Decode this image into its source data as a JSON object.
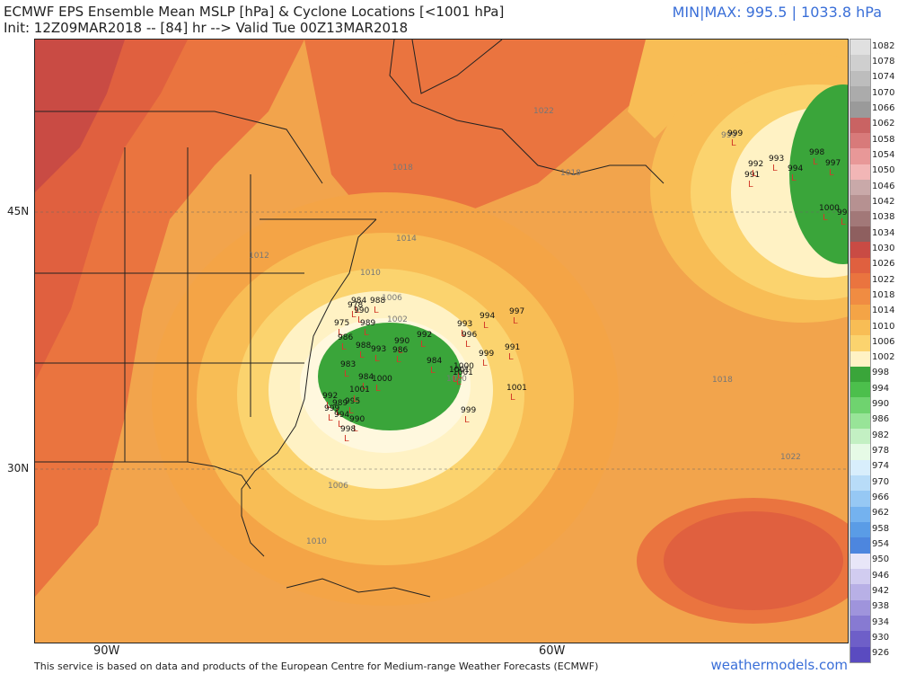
{
  "header": {
    "title_line1": "ECMWF EPS Ensemble Mean MSLP [hPa] & Cyclone Locations [<1001 hPa]",
    "title_line2": "Init: 12Z09MAR2018 -- [84] hr --> Valid Tue 00Z13MAR2018",
    "minmax": "MIN|MAX: 995.5 | 1033.8 hPa"
  },
  "axes": {
    "lat_labels": [
      "45N",
      "30N"
    ],
    "lon_labels": [
      "90W",
      "60W"
    ]
  },
  "contour_labels": [
    "1022",
    "1018",
    "1014",
    "1012",
    "1010",
    "1006",
    "1002",
    "1018",
    "1022",
    "1006",
    "1010",
    "999",
    "1018",
    "1010"
  ],
  "cyclone_markers": [
    "984",
    "988",
    "978",
    "990",
    "989",
    "975",
    "986",
    "988",
    "993",
    "983",
    "984",
    "990",
    "986",
    "992",
    "984",
    "993",
    "994",
    "999",
    "1000",
    "1001",
    "997",
    "996",
    "991",
    "995",
    "992",
    "989",
    "999",
    "1001",
    "994",
    "990",
    "998",
    "1001",
    "1000",
    "999",
    "1001",
    "991",
    "999",
    "992",
    "993",
    "994",
    "998",
    "997",
    "1000",
    "994",
    "999"
  ],
  "colorbar_labels": [
    "1082",
    "1078",
    "1074",
    "1070",
    "1066",
    "1062",
    "1058",
    "1054",
    "1050",
    "1046",
    "1042",
    "1038",
    "1034",
    "1030",
    "1026",
    "1022",
    "1018",
    "1014",
    "1010",
    "1006",
    "1002",
    "998",
    "994",
    "990",
    "986",
    "982",
    "978",
    "974",
    "970",
    "966",
    "962",
    "958",
    "954",
    "950",
    "946",
    "942",
    "938",
    "934",
    "930",
    "926"
  ],
  "colorbar_colors": [
    "#e0e0e0",
    "#cfcfcf",
    "#bdbdbd",
    "#ababab",
    "#9a9a9a",
    "#c96363",
    "#d87a7a",
    "#e89898",
    "#f2b6b6",
    "#c9a9a9",
    "#b69191",
    "#a27878",
    "#8e5f5f",
    "#c94b44",
    "#e0603f",
    "#ea743f",
    "#f08c42",
    "#f4a446",
    "#f8bd55",
    "#fbd36e",
    "#fff2c4",
    "#3aa53a",
    "#4cbf4c",
    "#6fd36f",
    "#98e498",
    "#c3f0c3",
    "#e6fae6",
    "#d8eefc",
    "#b8dcf8",
    "#96c8f4",
    "#74b2ef",
    "#5a9ce6",
    "#4d86de",
    "#e8e6f8",
    "#d1ccf0",
    "#b8b0e6",
    "#9f94dc",
    "#877ad2",
    "#6e5fc8",
    "#5a4bc0"
  ],
  "footer": {
    "disclaimer": "This service is based on data and products of the European Centre for Medium-range Weather Forecasts (ECMWF)",
    "brand": "weathermodels.com"
  }
}
